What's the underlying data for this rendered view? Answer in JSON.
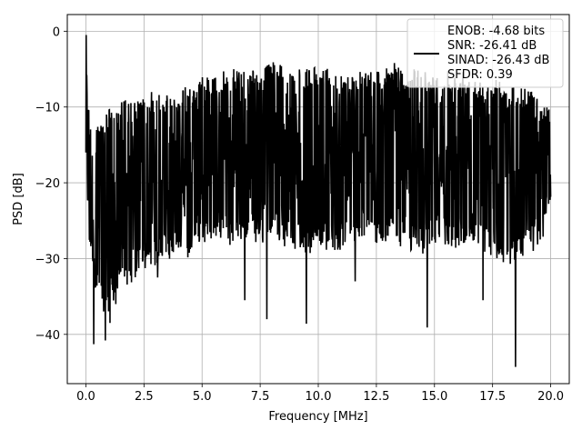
{
  "chart_data": {
    "type": "line",
    "xlabel": "Frequency [MHz]",
    "ylabel": "PSD [dB]",
    "xlim": [
      -0.8,
      20.8
    ],
    "ylim": [
      -46.5,
      2.2
    ],
    "x_ticks": [
      0.0,
      2.5,
      5.0,
      7.5,
      10.0,
      12.5,
      15.0,
      17.5,
      20.0
    ],
    "x_tick_labels": [
      "0.0",
      "2.5",
      "5.0",
      "7.5",
      "10.0",
      "12.5",
      "15.0",
      "17.5",
      "20.0"
    ],
    "y_ticks": [
      0,
      -10,
      -20,
      -30,
      -40
    ],
    "y_tick_labels": [
      "0",
      "−10",
      "−20",
      "−30",
      "−40"
    ],
    "grid": true,
    "legend_position": "top-right",
    "legend_entries": [
      "ENOB: -4.68 bits",
      "SNR: -26.41 dB",
      "SINAD: -26.43 dB",
      "SFDR: 0.39"
    ],
    "series": [
      {
        "color": "#000000",
        "x": [
          0.0,
          0.05,
          0.1,
          0.15,
          0.2,
          0.3,
          0.5,
          0.7,
          0.8,
          1.0,
          1.2,
          1.5,
          2.0,
          2.4,
          2.8,
          3.2,
          4.0,
          4.4,
          4.8,
          5.0,
          5.6,
          6.0,
          6.4,
          6.8,
          7.2,
          7.6,
          8.0,
          8.4,
          8.8,
          9.2,
          9.6,
          10.0,
          10.4,
          10.8,
          11.2,
          11.6,
          12.0,
          12.4,
          12.8,
          13.2,
          13.6,
          14.0,
          14.4,
          14.8,
          15.2,
          15.6,
          16.0,
          16.4,
          16.8,
          17.2,
          17.6,
          18.0,
          18.4,
          18.8,
          19.2,
          19.6,
          20.0
        ],
        "upper": [
          -0.5,
          -4,
          -8,
          -10,
          -12,
          -13,
          -11,
          -12,
          -10,
          -10,
          -10,
          -9,
          -9,
          -9,
          -8,
          -8,
          -8,
          -7,
          -7,
          -6,
          -6,
          -5,
          -5,
          -5,
          -5,
          -5,
          -4,
          -4,
          -5,
          -5,
          -5,
          -4,
          -5,
          -5,
          -6,
          -5,
          -5,
          -5,
          -5,
          -4,
          -5,
          -5,
          -5,
          -5,
          -5,
          -5,
          -5,
          -5,
          -6,
          -6,
          -6,
          -7,
          -7,
          -7,
          -8,
          -9,
          -10
        ],
        "lower": [
          -20,
          -26,
          -28,
          -29,
          -30,
          -33,
          -36,
          -37,
          -37,
          -37,
          -36,
          -35,
          -33,
          -32,
          -31,
          -31,
          -30,
          -30,
          -29,
          -28,
          -28,
          -28,
          -29,
          -28,
          -28,
          -28,
          -28,
          -28,
          -29,
          -29,
          -30,
          -28,
          -29,
          -29,
          -29,
          -28,
          -28,
          -28,
          -29,
          -28,
          -29,
          -29,
          -30,
          -29,
          -28,
          -29,
          -29,
          -29,
          -29,
          -30,
          -30,
          -31,
          -31,
          -30,
          -30,
          -29,
          -22
        ],
        "dips": [
          [
            0.35,
            -41.3
          ],
          [
            0.85,
            -40.8
          ],
          [
            1.3,
            -36.0
          ],
          [
            1.05,
            -38.5
          ],
          [
            7.8,
            -38.0
          ],
          [
            6.85,
            -35.5
          ],
          [
            9.5,
            -38.6
          ],
          [
            14.7,
            -39.1
          ],
          [
            18.5,
            -44.3
          ],
          [
            3.1,
            -32.5
          ],
          [
            17.1,
            -35.5
          ],
          [
            11.6,
            -33.0
          ]
        ]
      }
    ]
  }
}
